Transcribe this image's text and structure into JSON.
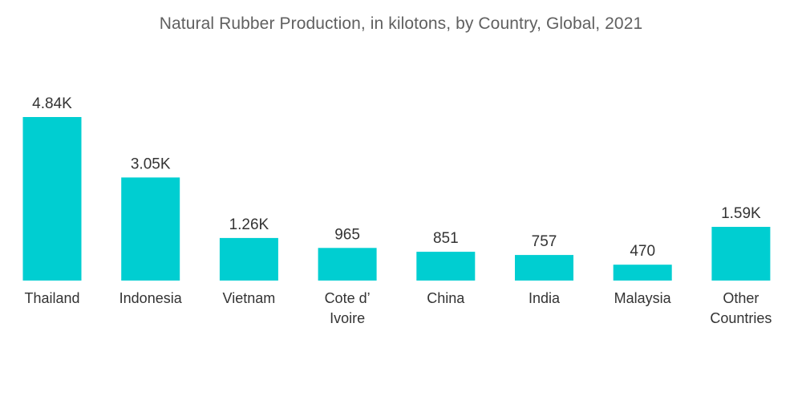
{
  "chart_data": {
    "type": "bar",
    "title": "Natural Rubber Production, in kilotons, by Country, Global, 2021",
    "xlabel": "",
    "ylabel": "",
    "categories": [
      [
        "Thailand"
      ],
      [
        "Indonesia"
      ],
      [
        "Vietnam"
      ],
      [
        "Cote d’",
        "Ivoire"
      ],
      [
        "China"
      ],
      [
        "India"
      ],
      [
        "Malaysia"
      ],
      [
        "Other",
        "Countries"
      ]
    ],
    "values": [
      4840,
      3050,
      1260,
      965,
      851,
      757,
      470,
      1590
    ],
    "value_labels": [
      "4.84K",
      "3.05K",
      "1.26K",
      "965",
      "851",
      "757",
      "470",
      "1.59K"
    ],
    "ylim": [
      0,
      4840
    ],
    "grid": false,
    "legend": "none",
    "colors": {
      "bar": "#00CED1",
      "text": "#333333",
      "title": "#606060"
    }
  }
}
